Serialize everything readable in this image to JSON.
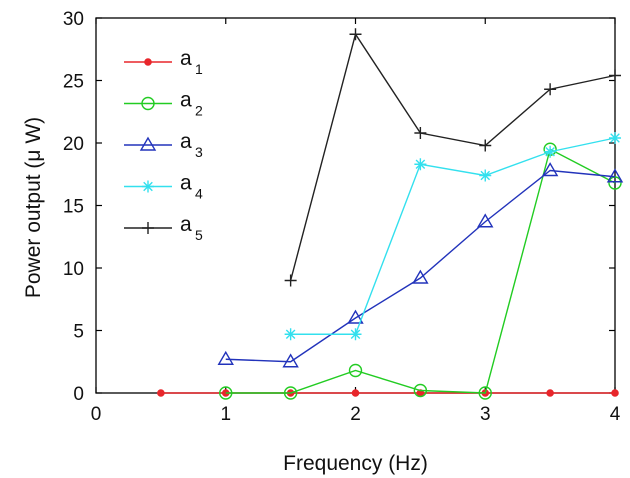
{
  "chart_data": {
    "type": "line",
    "title": "",
    "xlabel": "Frequency (Hz)",
    "ylabel": "Power output (μ W)",
    "xlim": [
      0,
      4
    ],
    "ylim": [
      0,
      30
    ],
    "xticks": [
      0,
      1,
      2,
      3,
      4
    ],
    "yticks": [
      0,
      5,
      10,
      15,
      20,
      25,
      30
    ],
    "grid": false,
    "legend_position": "top-left",
    "series": [
      {
        "name": "a",
        "sub": "1",
        "color": "#e8262b",
        "marker": "dot",
        "x": [
          0.5,
          1,
          1.5,
          2,
          2.5,
          3,
          3.5,
          4
        ],
        "y": [
          0,
          0,
          0,
          0,
          0,
          0,
          0,
          0
        ]
      },
      {
        "name": "a",
        "sub": "2",
        "color": "#22cc22",
        "marker": "circle",
        "x": [
          1,
          1.5,
          2,
          2.5,
          3,
          3.5,
          4
        ],
        "y": [
          0,
          0,
          1.8,
          0.2,
          0,
          19.5,
          16.8
        ]
      },
      {
        "name": "a",
        "sub": "3",
        "color": "#2233bb",
        "marker": "triangle",
        "x": [
          1,
          1.5,
          2,
          2.5,
          3,
          3.5,
          4
        ],
        "y": [
          2.7,
          2.5,
          6,
          9.2,
          13.7,
          17.8,
          17.3
        ]
      },
      {
        "name": "a",
        "sub": "4",
        "color": "#33e0ee",
        "marker": "star",
        "x": [
          1.5,
          2,
          2.5,
          3,
          3.5,
          4
        ],
        "y": [
          4.7,
          4.7,
          18.3,
          17.4,
          19.3,
          20.4
        ]
      },
      {
        "name": "a",
        "sub": "5",
        "color": "#222222",
        "marker": "plus",
        "x": [
          1.5,
          2,
          2.5,
          3,
          3.5,
          4
        ],
        "y": [
          9,
          28.7,
          20.8,
          19.8,
          24.3,
          25.4
        ]
      }
    ]
  }
}
